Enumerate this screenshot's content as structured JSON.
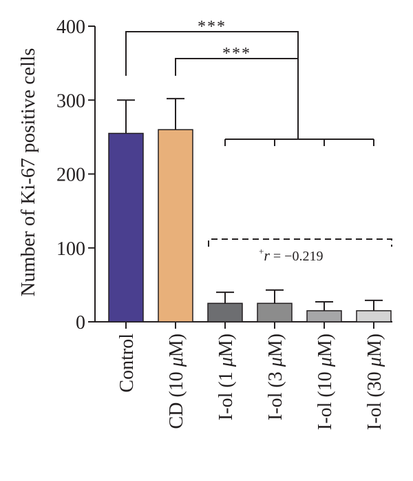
{
  "chart_data": {
    "type": "bar",
    "title": "",
    "ylabel": "Number of Ki-67 positive cells",
    "xlabel": "",
    "ylim": [
      0,
      400
    ],
    "yticks": [
      0,
      100,
      200,
      300,
      400
    ],
    "categories": [
      {
        "prefix": "Control",
        "italic": "",
        "suffix": ""
      },
      {
        "prefix": "CD (10 ",
        "italic": "μ",
        "suffix": "M)"
      },
      {
        "prefix": "I-ol (1 ",
        "italic": "μ",
        "suffix": "M)"
      },
      {
        "prefix": "I-ol (3 ",
        "italic": "μ",
        "suffix": "M)"
      },
      {
        "prefix": "I-ol (10 ",
        "italic": "μ",
        "suffix": "M)"
      },
      {
        "prefix": "I-ol (30 ",
        "italic": "μ",
        "suffix": "M)"
      }
    ],
    "values": [
      255,
      260,
      25,
      25,
      15,
      15
    ],
    "errors": [
      45,
      42,
      15,
      18,
      12,
      14
    ],
    "colors": [
      "#4a3f8f",
      "#e8b07a",
      "#6d6e71",
      "#8c8c8c",
      "#a6a6a8",
      "#d4d4d4"
    ],
    "annotations": {
      "significance_1": "***",
      "significance_2": "***",
      "correlation": {
        "sup": "+",
        "italic": "r",
        "rest": " = −0.219"
      }
    }
  }
}
